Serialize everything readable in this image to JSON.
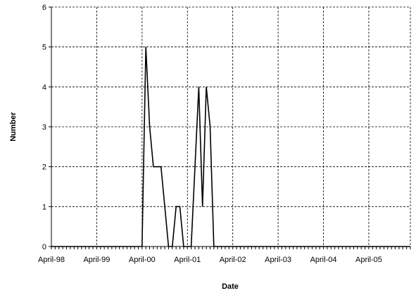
{
  "chart_data": {
    "type": "line",
    "title": "",
    "xlabel": "Date",
    "ylabel": "Number",
    "ylim": [
      0,
      6
    ],
    "yticks": [
      0,
      1,
      2,
      3,
      4,
      5,
      6
    ],
    "xlim": [
      "1998-04",
      "2006-03"
    ],
    "xtick_labels": [
      "April-98",
      "April-99",
      "April-00",
      "April-01",
      "April-02",
      "April-03",
      "April-04",
      "April-05"
    ],
    "xtick_dates": [
      "1998-04",
      "1999-04",
      "2000-04",
      "2001-04",
      "2002-04",
      "2003-04",
      "2004-04",
      "2005-04"
    ],
    "grid": true,
    "legend": "none",
    "series": [
      {
        "x": [
          "1998-04",
          "1999-04",
          "2000-04",
          "2000-05",
          "2000-06",
          "2000-07",
          "2000-08",
          "2000-09",
          "2000-10",
          "2000-11",
          "2000-12",
          "2001-01",
          "2001-02",
          "2001-03",
          "2001-04",
          "2001-05",
          "2001-06",
          "2001-07",
          "2001-08",
          "2001-09",
          "2001-10",
          "2001-11",
          "2001-12",
          "2002-01",
          "2006-03"
        ],
        "y": [
          0,
          0,
          0,
          5,
          3,
          2,
          2,
          2,
          1,
          0,
          0,
          1,
          1,
          0,
          0,
          0,
          2,
          4,
          1,
          4,
          3,
          0,
          0,
          0,
          0
        ]
      }
    ]
  }
}
